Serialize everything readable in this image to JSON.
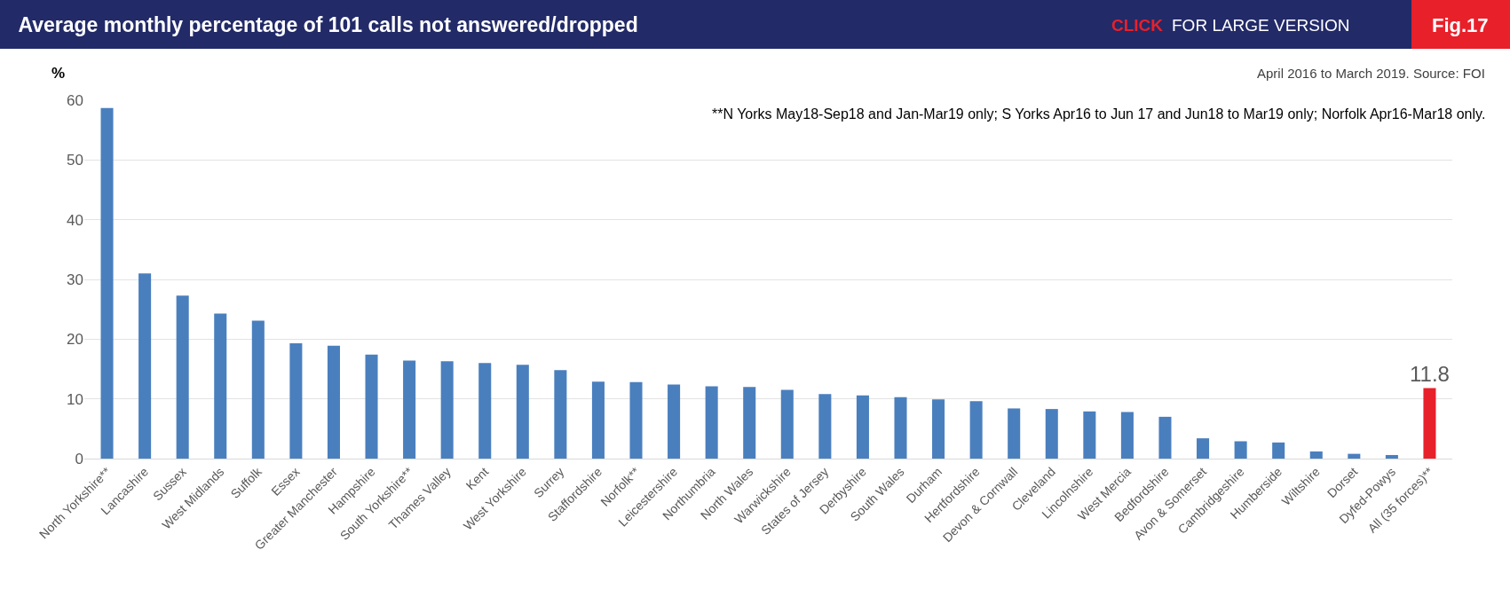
{
  "chart_data": {
    "type": "bar",
    "title": "Average monthly percentage of 101 calls not answered/dropped",
    "ylabel": "%",
    "categories": [
      "North Yorkshire**",
      "Lancashire",
      "Sussex",
      "West Midlands",
      "Suffolk",
      "Essex",
      "Greater Manchester",
      "Hampshire",
      "South Yorkshire**",
      "Thames Valley",
      "Kent",
      "West Yorkshire",
      "Surrey",
      "Staffordshire",
      "Norfolk**",
      "Leicestershire",
      "Northumbria",
      "North Wales",
      "Warwickshire",
      "States of Jersey",
      "Derbyshire",
      "South Wales",
      "Durham",
      "Hertfordshire",
      "Devon & Cornwall",
      "Cleveland",
      "Lincolnshire",
      "West Mercia",
      "Bedfordshire",
      "Avon & Somerset",
      "Cambridgeshire",
      "Humberside",
      "Wiltshire",
      "Dorset",
      "Dyfed-Powys",
      "All (35 forces)**"
    ],
    "values": [
      58.7,
      31.0,
      27.3,
      24.3,
      23.1,
      19.3,
      18.9,
      17.4,
      16.4,
      16.3,
      16.0,
      15.7,
      14.8,
      12.9,
      12.8,
      12.4,
      12.1,
      12.0,
      11.5,
      10.8,
      10.6,
      10.3,
      9.9,
      9.6,
      8.4,
      8.3,
      7.9,
      7.8,
      7.0,
      3.4,
      2.9,
      2.7,
      1.2,
      0.8,
      0.6,
      11.8
    ],
    "colors": [
      "#4a7fbe",
      "#4a7fbe",
      "#4a7fbe",
      "#4a7fbe",
      "#4a7fbe",
      "#4a7fbe",
      "#4a7fbe",
      "#4a7fbe",
      "#4a7fbe",
      "#4a7fbe",
      "#4a7fbe",
      "#4a7fbe",
      "#4a7fbe",
      "#4a7fbe",
      "#4a7fbe",
      "#4a7fbe",
      "#4a7fbe",
      "#4a7fbe",
      "#4a7fbe",
      "#4a7fbe",
      "#4a7fbe",
      "#4a7fbe",
      "#4a7fbe",
      "#4a7fbe",
      "#4a7fbe",
      "#4a7fbe",
      "#4a7fbe",
      "#4a7fbe",
      "#4a7fbe",
      "#4a7fbe",
      "#4a7fbe",
      "#4a7fbe",
      "#4a7fbe",
      "#4a7fbe",
      "#4a7fbe",
      "#e8202a"
    ],
    "value_labels": [
      null,
      null,
      null,
      null,
      null,
      null,
      null,
      null,
      null,
      null,
      null,
      null,
      null,
      null,
      null,
      null,
      null,
      null,
      null,
      null,
      null,
      null,
      null,
      null,
      null,
      null,
      null,
      null,
      null,
      null,
      null,
      null,
      null,
      null,
      null,
      "11.8"
    ],
    "ylim": [
      0,
      60
    ],
    "yticks": [
      0,
      10,
      20,
      30,
      40,
      50,
      60
    ],
    "grid": "y",
    "legend": false,
    "annotations": [
      "April 2016 to March 2019. Source: FOI",
      "**N Yorks May18-Sep18 and Jan-Mar19 only; S Yorks Apr16 to Jun 17 and Jun18 to Mar19 only; Norfolk Apr16-Mar18 only.",
      "CLICK",
      "FOR LARGE VERSION",
      "Fig.17"
    ]
  }
}
